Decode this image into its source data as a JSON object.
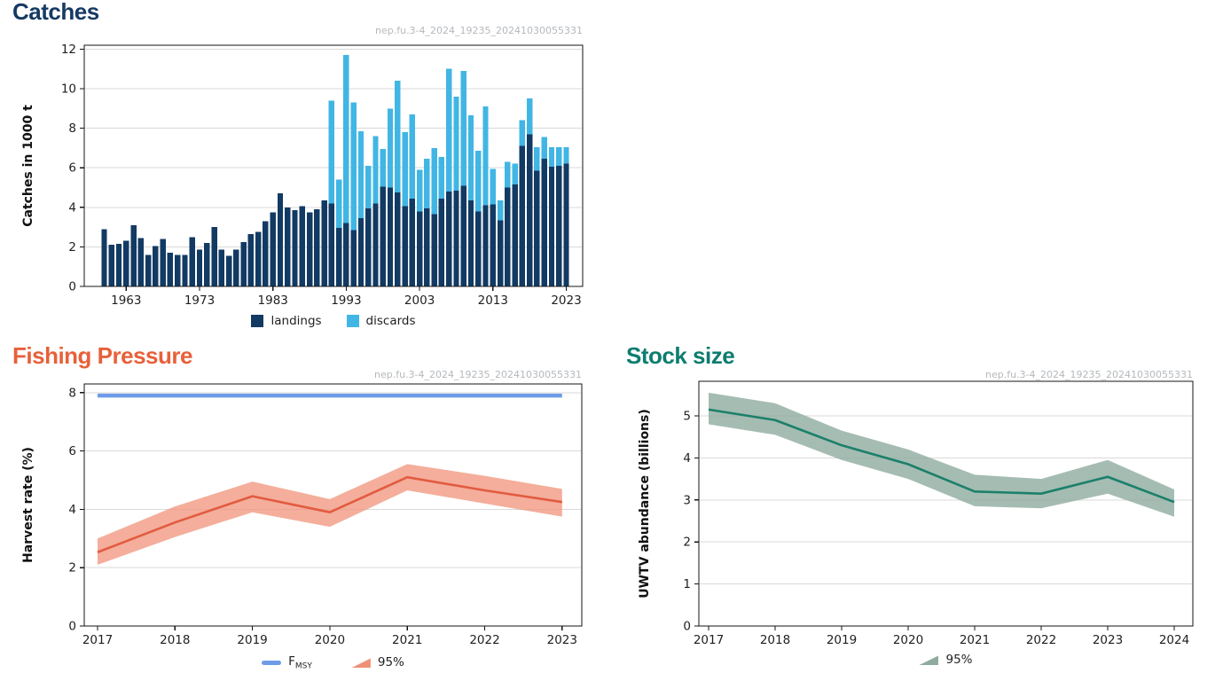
{
  "chart_data": [
    {
      "id": "catches",
      "type": "bar",
      "title": "Catches",
      "title_color": "#163a64",
      "watermark": "nep.fu.3-4_2024_19235_20241030055331",
      "ylabel": "Catches in 1000 t",
      "xlabel": "",
      "ylim": [
        0,
        12.2
      ],
      "yticks": [
        0,
        2,
        4,
        6,
        8,
        10,
        12
      ],
      "xticks": [
        1963,
        1973,
        1983,
        1993,
        2003,
        2013,
        2023
      ],
      "grid": true,
      "legend_position": "bottom",
      "years": [
        1960,
        1961,
        1962,
        1963,
        1964,
        1965,
        1966,
        1967,
        1968,
        1969,
        1970,
        1971,
        1972,
        1973,
        1974,
        1975,
        1976,
        1977,
        1978,
        1979,
        1980,
        1981,
        1982,
        1983,
        1984,
        1985,
        1986,
        1987,
        1988,
        1989,
        1990,
        1991,
        1992,
        1993,
        1994,
        1995,
        1996,
        1997,
        1998,
        1999,
        2000,
        2001,
        2002,
        2003,
        2004,
        2005,
        2006,
        2007,
        2008,
        2009,
        2010,
        2011,
        2012,
        2013,
        2014,
        2015,
        2016,
        2017,
        2018,
        2019,
        2020,
        2021,
        2022,
        2023
      ],
      "series": [
        {
          "name": "landings",
          "color": "#123a63",
          "values": [
            2.9,
            2.1,
            2.15,
            2.3,
            3.1,
            2.45,
            1.6,
            2.05,
            2.4,
            1.7,
            1.6,
            1.6,
            2.5,
            1.85,
            2.2,
            3.0,
            1.85,
            1.55,
            1.85,
            2.25,
            2.65,
            2.75,
            3.3,
            3.75,
            4.7,
            4.0,
            3.85,
            4.05,
            3.75,
            3.9,
            4.35,
            4.2,
            2.95,
            3.2,
            2.85,
            3.45,
            3.95,
            4.2,
            5.05,
            5.0,
            4.75,
            4.05,
            4.45,
            3.8,
            3.95,
            3.65,
            4.45,
            4.8,
            4.85,
            5.1,
            4.35,
            3.8,
            4.1,
            4.15,
            3.35,
            5.0,
            5.15,
            7.1,
            7.7,
            5.85,
            6.45,
            6.05,
            6.1,
            6.2
          ]
        },
        {
          "name": "discards",
          "color": "#41b6e4",
          "values": [
            0,
            0,
            0,
            0,
            0,
            0,
            0,
            0,
            0,
            0,
            0,
            0,
            0,
            0,
            0,
            0,
            0,
            0,
            0,
            0,
            0,
            0,
            0,
            0,
            0,
            0,
            0,
            0,
            0,
            0,
            0,
            5.2,
            2.45,
            8.5,
            6.45,
            4.4,
            2.15,
            3.4,
            1.9,
            4.0,
            5.65,
            3.75,
            4.25,
            2.1,
            2.5,
            3.35,
            2.1,
            6.2,
            4.75,
            5.8,
            4.3,
            3.05,
            5.0,
            1.8,
            1.0,
            1.3,
            1.05,
            1.3,
            1.8,
            1.2,
            1.1,
            1.0,
            0.95,
            0.85
          ]
        }
      ]
    },
    {
      "id": "fishing_pressure",
      "type": "line",
      "title": "Fishing Pressure",
      "title_color": "#e8603a",
      "watermark": "nep.fu.3-4_2024_19235_20241030055331",
      "ylabel": "Harvest rate (%)",
      "xlabel": "",
      "ylim": [
        0,
        8.3
      ],
      "yticks": [
        0,
        2,
        4,
        6,
        8
      ],
      "xticks": [
        2017,
        2018,
        2019,
        2020,
        2021,
        2022,
        2023
      ],
      "grid": true,
      "legend_position": "bottom",
      "years": [
        2017,
        2018,
        2019,
        2020,
        2021,
        2022,
        2023
      ],
      "line": {
        "name": "harvest_rate",
        "color": "#e25b40",
        "values": [
          2.53,
          3.55,
          4.45,
          3.9,
          5.1,
          4.65,
          4.25
        ]
      },
      "band": {
        "name": "95%",
        "color": "#f0937a",
        "opacity": 0.75,
        "legend_color": "#ef9077",
        "hi": [
          3.0,
          4.1,
          4.95,
          4.35,
          5.55,
          5.15,
          4.7
        ],
        "lo": [
          2.1,
          3.05,
          3.9,
          3.4,
          4.65,
          4.2,
          3.75
        ]
      },
      "refline": {
        "name": "FMSY",
        "label_main": "F",
        "label_sub": "MSY",
        "color": "#6f9ce8",
        "value": 7.9
      }
    },
    {
      "id": "stock_size",
      "type": "line",
      "title": "Stock size",
      "title_color": "#0c7d6f",
      "watermark": "nep.fu.3-4_2024_19235_20241030055331",
      "ylabel": "UWTV abundance (billions)",
      "xlabel": "",
      "ylim": [
        0,
        5.8
      ],
      "yticks": [
        0,
        1,
        2,
        3,
        4,
        5
      ],
      "xticks": [
        2017,
        2018,
        2019,
        2020,
        2021,
        2022,
        2023,
        2024
      ],
      "grid": true,
      "legend_position": "bottom",
      "years": [
        2017,
        2018,
        2019,
        2020,
        2021,
        2022,
        2023,
        2024
      ],
      "line": {
        "name": "uwtv_abundance",
        "color": "#1b806b",
        "values": [
          5.15,
          4.9,
          4.3,
          3.85,
          3.2,
          3.15,
          3.55,
          2.95
        ]
      },
      "band": {
        "name": "95%",
        "color": "#8fab9f",
        "opacity": 0.8,
        "legend_color": "#8fab9f",
        "hi": [
          5.55,
          5.3,
          4.65,
          4.2,
          3.6,
          3.5,
          3.95,
          3.25
        ],
        "lo": [
          4.8,
          4.55,
          3.95,
          3.5,
          2.85,
          2.8,
          3.15,
          2.6
        ]
      }
    }
  ]
}
